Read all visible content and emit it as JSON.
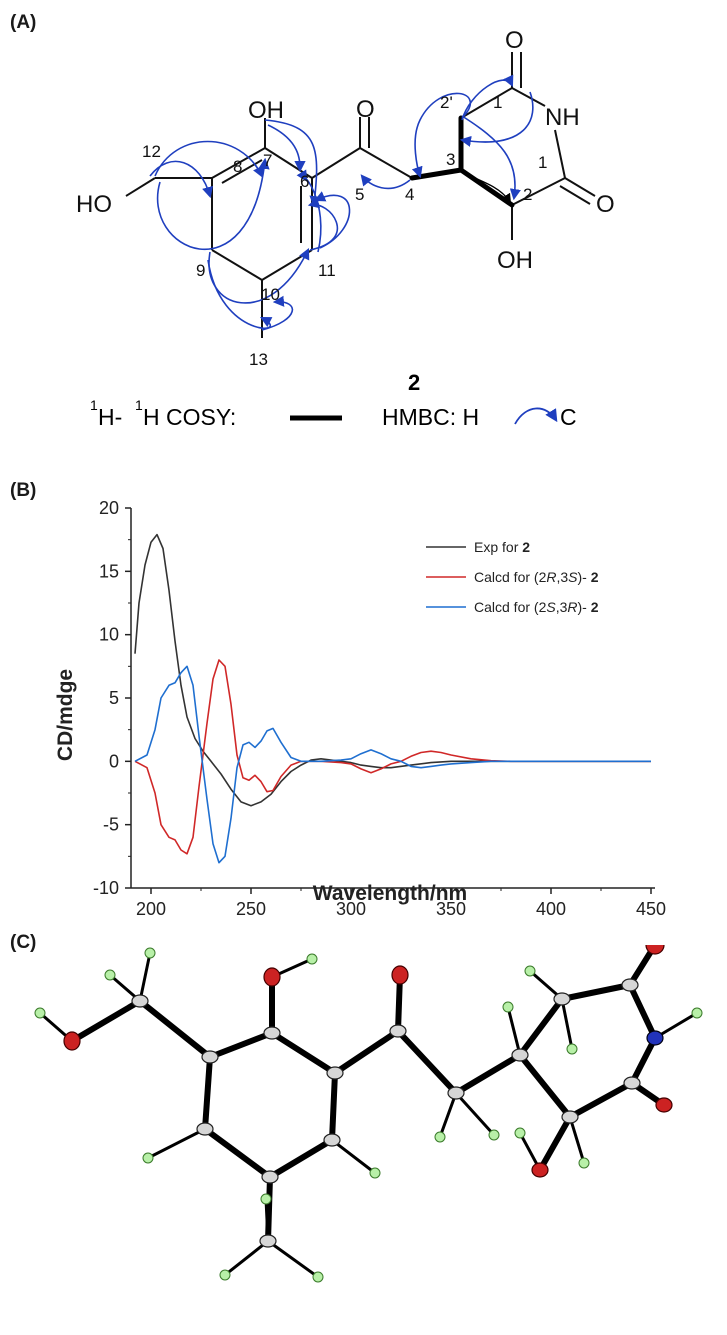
{
  "panels": {
    "a_label": "(A)",
    "b_label": "(B)",
    "c_label": "(C)"
  },
  "structure": {
    "compound": "2",
    "atoms": {
      "oh_top": "OH",
      "oh_bottom": "OH",
      "ho_left": "HO",
      "nh": "NH",
      "o_carbonyl": "O",
      "o_imide_top": "O",
      "o_imide_right": "O"
    },
    "numbers": {
      "n12": "12",
      "n7": "7",
      "n8": "8",
      "n6": "6",
      "n5": "5",
      "n4": "4",
      "n9": "9",
      "n11": "11",
      "n10": "10",
      "n13": "13",
      "n3": "3",
      "n2p": "2'",
      "n1a": "1",
      "n1b": "1",
      "n2": "2"
    },
    "legend": {
      "cosy_sup1": "1",
      "cosy_h1": "H-",
      "cosy_sup2": "1",
      "cosy_h2": "H COSY:",
      "hmbc_label": "HMBC: H",
      "hmbc_c": "C"
    },
    "colors": {
      "hmbc": "#1f3fbf",
      "cosy": "#000000"
    }
  },
  "chart_data": {
    "type": "line",
    "xlabel": "Wavelength/nm",
    "ylabel": "CD/mdge",
    "xlim": [
      190,
      452
    ],
    "ylim": [
      -10,
      20
    ],
    "xticks": [
      "200",
      "250",
      "300",
      "350",
      "400",
      "450"
    ],
    "yticks": [
      "20",
      "15",
      "10",
      "5",
      "0",
      "-5",
      "-10"
    ],
    "legend_position": "top-right",
    "series": [
      {
        "name": "Exp for 2",
        "legend_prefix": "Exp for ",
        "legend_bold": "2",
        "color": "#333333",
        "points": [
          [
            192,
            8.5
          ],
          [
            194,
            12.5
          ],
          [
            197,
            15.5
          ],
          [
            200,
            17.3
          ],
          [
            203,
            17.9
          ],
          [
            206,
            16.8
          ],
          [
            209,
            13.5
          ],
          [
            212,
            9.5
          ],
          [
            215,
            6
          ],
          [
            218,
            3.5
          ],
          [
            222,
            1.8
          ],
          [
            226,
            0.8
          ],
          [
            230,
            0
          ],
          [
            235,
            -1
          ],
          [
            240,
            -2.2
          ],
          [
            245,
            -3.2
          ],
          [
            250,
            -3.5
          ],
          [
            255,
            -3.2
          ],
          [
            260,
            -2.6
          ],
          [
            265,
            -1.6
          ],
          [
            270,
            -0.8
          ],
          [
            275,
            -0.3
          ],
          [
            280,
            0.1
          ],
          [
            285,
            0.2
          ],
          [
            290,
            0.1
          ],
          [
            295,
            0
          ],
          [
            300,
            -0.1
          ],
          [
            305,
            -0.3
          ],
          [
            310,
            -0.4
          ],
          [
            315,
            -0.5
          ],
          [
            320,
            -0.5
          ],
          [
            330,
            -0.3
          ],
          [
            340,
            -0.1
          ],
          [
            350,
            0
          ],
          [
            450,
            0
          ]
        ]
      },
      {
        "name": "Calcd for (2R,3S)-2",
        "legend_prefix": "Calcd for (2",
        "legend_i1": "R",
        "legend_mid": ",3",
        "legend_i2": "S",
        "legend_suffix": ")- ",
        "legend_bold": "2",
        "color": "#d02828",
        "points": [
          [
            192,
            0
          ],
          [
            198,
            -0.5
          ],
          [
            202,
            -2.5
          ],
          [
            205,
            -5
          ],
          [
            209,
            -6
          ],
          [
            212,
            -6.2
          ],
          [
            215,
            -7
          ],
          [
            218,
            -7.3
          ],
          [
            221,
            -6
          ],
          [
            224,
            -2
          ],
          [
            228,
            3
          ],
          [
            231,
            6.5
          ],
          [
            234,
            8
          ],
          [
            237,
            7.5
          ],
          [
            240,
            4.5
          ],
          [
            243,
            0.5
          ],
          [
            246,
            -1.3
          ],
          [
            249,
            -1.5
          ],
          [
            252,
            -1.1
          ],
          [
            255,
            -1.6
          ],
          [
            258,
            -2.4
          ],
          [
            261,
            -2.3
          ],
          [
            265,
            -1.2
          ],
          [
            270,
            -0.3
          ],
          [
            275,
            0
          ],
          [
            285,
            0
          ],
          [
            295,
            -0.1
          ],
          [
            300,
            -0.2
          ],
          [
            305,
            -0.6
          ],
          [
            310,
            -0.9
          ],
          [
            315,
            -0.6
          ],
          [
            320,
            -0.2
          ],
          [
            325,
            0
          ],
          [
            330,
            0.4
          ],
          [
            335,
            0.7
          ],
          [
            340,
            0.8
          ],
          [
            345,
            0.7
          ],
          [
            350,
            0.5
          ],
          [
            360,
            0.2
          ],
          [
            370,
            0.05
          ],
          [
            380,
            0
          ],
          [
            450,
            0
          ]
        ]
      },
      {
        "name": "Calcd for (2S,3R)-2",
        "legend_prefix": "Calcd for (2",
        "legend_i1": "S",
        "legend_mid": ",3",
        "legend_i2": "R",
        "legend_suffix": ")- ",
        "legend_bold": "2",
        "color": "#1f6fd0",
        "points": [
          [
            192,
            0
          ],
          [
            198,
            0.5
          ],
          [
            202,
            2.5
          ],
          [
            205,
            5
          ],
          [
            209,
            6
          ],
          [
            212,
            6.2
          ],
          [
            215,
            7
          ],
          [
            218,
            7.5
          ],
          [
            221,
            6
          ],
          [
            224,
            2
          ],
          [
            228,
            -3
          ],
          [
            231,
            -6.5
          ],
          [
            234,
            -8
          ],
          [
            237,
            -7.5
          ],
          [
            240,
            -4.5
          ],
          [
            243,
            -0.5
          ],
          [
            246,
            1.3
          ],
          [
            249,
            1.5
          ],
          [
            252,
            1.1
          ],
          [
            255,
            1.6
          ],
          [
            258,
            2.4
          ],
          [
            261,
            2.6
          ],
          [
            265,
            1.5
          ],
          [
            270,
            0.3
          ],
          [
            275,
            0
          ],
          [
            285,
            0
          ],
          [
            295,
            0.1
          ],
          [
            300,
            0.2
          ],
          [
            305,
            0.6
          ],
          [
            310,
            0.9
          ],
          [
            315,
            0.6
          ],
          [
            320,
            0.2
          ],
          [
            325,
            0
          ],
          [
            330,
            -0.4
          ],
          [
            335,
            -0.5
          ],
          [
            340,
            -0.4
          ],
          [
            345,
            -0.3
          ],
          [
            350,
            -0.2
          ],
          [
            360,
            -0.1
          ],
          [
            370,
            0
          ],
          [
            450,
            0
          ]
        ]
      }
    ]
  },
  "crystal": {
    "colors": {
      "carbon": "#d6d6d6",
      "oxygen": "#cc2222",
      "nitrogen": "#2233bb",
      "hydrogen": "#b8f0a8",
      "bond": "#000000"
    }
  }
}
